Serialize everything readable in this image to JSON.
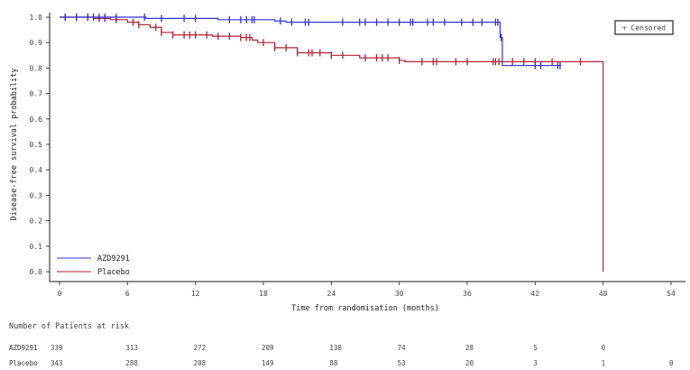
{
  "chart_data": {
    "type": "line",
    "subtype": "kaplan-meier",
    "title": "",
    "xlabel": "Time from randomisation (months)",
    "ylabel": "Disease-free survival probability",
    "xlim": [
      0,
      54
    ],
    "ylim": [
      0.0,
      1.0
    ],
    "x_ticks": [
      0,
      6,
      12,
      18,
      24,
      30,
      36,
      42,
      48,
      54
    ],
    "x_tick_labels": [
      "0",
      "6",
      "12",
      "18",
      "24",
      "30",
      "36",
      "42",
      "48",
      "54"
    ],
    "y_ticks": [
      0.0,
      0.1,
      0.2,
      0.3,
      0.4,
      0.5,
      0.6,
      0.7,
      0.8,
      0.9,
      1.0
    ],
    "y_tick_labels": [
      "0.0",
      "0.1",
      "0.2",
      "0.3",
      "0.4",
      "0.5",
      "0.6",
      "0.7",
      "0.8",
      "0.9",
      "1.0"
    ],
    "grid": false,
    "legend": {
      "position": "lower-left",
      "entries": [
        {
          "label": "AZD9291",
          "color": "#3333cc"
        },
        {
          "label": "Placebo",
          "color": "#b22234"
        }
      ]
    },
    "censor_legend": "+ Censored",
    "series": [
      {
        "name": "AZD9291",
        "color": "#3333cc",
        "steps": [
          [
            0,
            1.0
          ],
          [
            7.5,
            1.0
          ],
          [
            7.6,
            0.995
          ],
          [
            14,
            0.99
          ],
          [
            19,
            0.985
          ],
          [
            20,
            0.98
          ],
          [
            38.8,
            0.98
          ],
          [
            38.9,
            0.92
          ],
          [
            39.1,
            0.81
          ],
          [
            44.3,
            0.81
          ]
        ],
        "censor_times": [
          0.5,
          1.5,
          2.5,
          3,
          3.5,
          4,
          5,
          7.5,
          9,
          11,
          12,
          15,
          16,
          16.5,
          17,
          17.2,
          19.5,
          20.5,
          21.7,
          22,
          25,
          26.5,
          27,
          28,
          29,
          30,
          31,
          31.2,
          32.5,
          33,
          34,
          35.5,
          36.5,
          37.3,
          38.5,
          38.7,
          39,
          42,
          42.5,
          44,
          44.2
        ]
      },
      {
        "name": "Placebo",
        "color": "#b22234",
        "steps": [
          [
            0,
            1.0
          ],
          [
            3,
            0.995
          ],
          [
            4.5,
            0.99
          ],
          [
            6,
            0.98
          ],
          [
            7,
            0.97
          ],
          [
            8,
            0.96
          ],
          [
            9,
            0.94
          ],
          [
            10,
            0.93
          ],
          [
            13.5,
            0.925
          ],
          [
            16,
            0.92
          ],
          [
            17,
            0.91
          ],
          [
            17.5,
            0.9
          ],
          [
            19,
            0.88
          ],
          [
            21,
            0.86
          ],
          [
            24,
            0.85
          ],
          [
            26.5,
            0.84
          ],
          [
            30,
            0.83
          ],
          [
            30.5,
            0.825
          ],
          [
            48,
            0.825
          ],
          [
            48,
            0.0
          ]
        ],
        "censor_times": [
          0.5,
          1.5,
          2.5,
          3.5,
          4,
          5,
          6.5,
          7,
          8.5,
          9,
          10,
          11,
          11.5,
          12,
          13,
          14,
          15,
          16,
          16.5,
          16.8,
          18,
          19,
          20,
          21,
          22,
          22.3,
          23,
          24,
          25,
          27,
          28,
          28.5,
          29,
          30,
          32,
          33,
          33.3,
          35,
          36,
          38.3,
          38.5,
          38.8,
          40,
          41,
          42,
          43.5,
          46
        ]
      }
    ],
    "risk_table": {
      "title": "Number of Patients at risk",
      "times": [
        0,
        6,
        12,
        18,
        24,
        30,
        36,
        42,
        48,
        54
      ],
      "rows": [
        {
          "label": "AZD9291",
          "values": [
            "339",
            "313",
            "272",
            "209",
            "138",
            "74",
            "28",
            "5",
            "0",
            ""
          ]
        },
        {
          "label": "Placebo",
          "values": [
            "343",
            "288",
            "208",
            "149",
            "88",
            "53",
            "20",
            "3",
            "1",
            "0"
          ]
        }
      ]
    }
  }
}
